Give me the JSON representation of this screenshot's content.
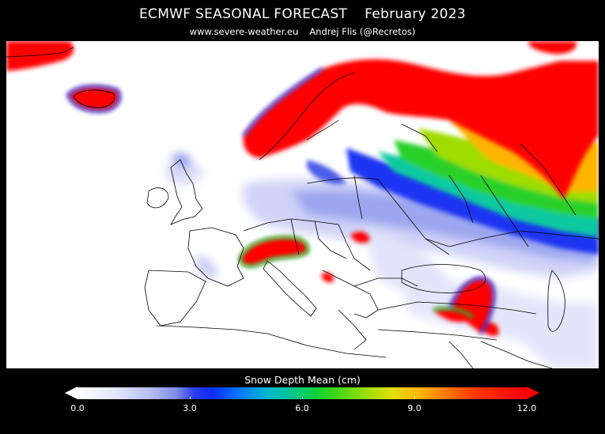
{
  "header": {
    "title_left": "ECMWF SEASONAL FORECAST",
    "title_right": "February 2023",
    "source": "www.severe-weather.eu",
    "author": "Andrej Flis (@Recretos)"
  },
  "legend": {
    "title": "Snow Depth Mean (cm)",
    "range": [
      0.0,
      12.0
    ],
    "tick_labels": [
      "0.0",
      "3.0",
      "6.0",
      "9.0",
      "12.0"
    ],
    "colors": {
      "min": "#ffffff",
      "low": "#2b3df0",
      "mid": "#0ed13b",
      "high": "#e0e000",
      "max": "#ff0000"
    }
  },
  "map": {
    "region": "Europe",
    "variable": "snow depth"
  }
}
